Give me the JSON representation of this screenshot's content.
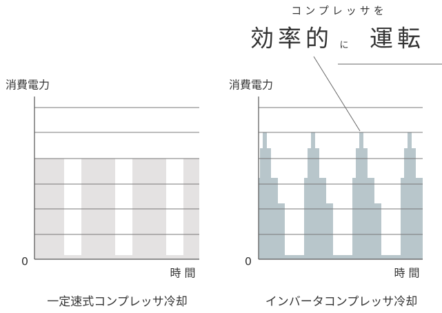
{
  "headline": {
    "top": "コンプレッサを",
    "main_1": "効率的",
    "small": "に",
    "main_2": "運転"
  },
  "left_chart": {
    "y_label": "消費電力",
    "origin": "0",
    "x_label": "時 間",
    "caption": "一定速式コンプレッサ冷却"
  },
  "right_chart": {
    "y_label": "消費電力",
    "origin": "0",
    "x_label": "時 間",
    "caption": "インバータコンプレッサ冷却"
  }
}
